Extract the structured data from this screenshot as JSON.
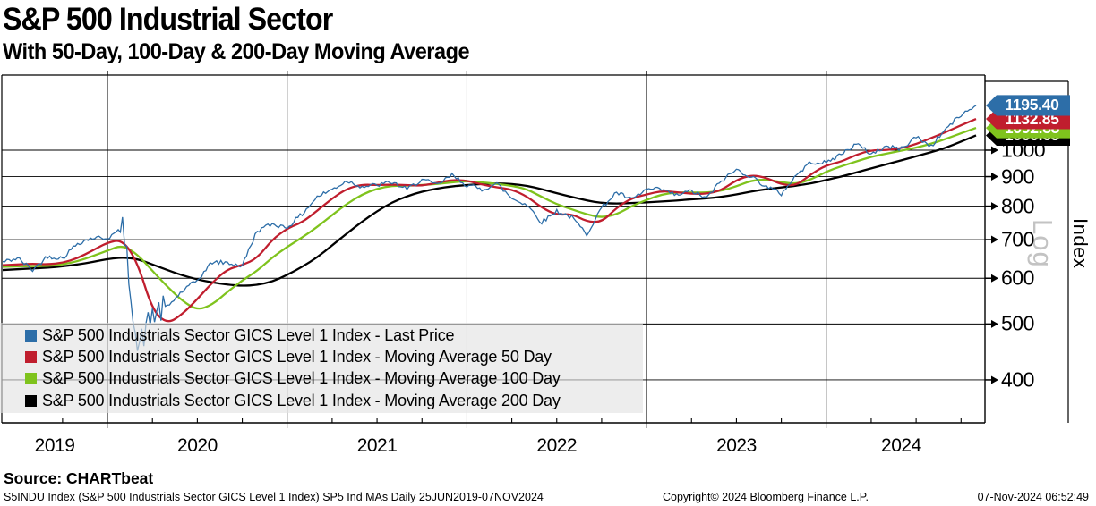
{
  "header": {
    "title": "S&P 500 Industrial Sector",
    "subtitle": "With 50-Day, 100-Day & 200-Day Moving Average"
  },
  "legend": {
    "items": [
      {
        "label": "S&P 500 Industrials Sector GICS Level 1 Index - Last Price",
        "color": "#2d6ea8"
      },
      {
        "label": "S&P 500 Industrials Sector GICS Level 1 Index - Moving Average 50 Day",
        "color": "#c01e2e"
      },
      {
        "label": "S&P 500 Industrials Sector GICS Level 1 Index - Moving Average 100 Day",
        "color": "#7fc31d"
      },
      {
        "label": "S&P 500 Industrials Sector GICS Level 1 Index - Moving Average 200 Day",
        "color": "#000000"
      }
    ]
  },
  "y_axis": {
    "scale_label": "Log",
    "axis_title": "Index",
    "ticks": [
      "1000",
      "900",
      "800",
      "700",
      "600",
      "500",
      "400"
    ]
  },
  "x_axis": {
    "year_labels": [
      "2019",
      "2020",
      "2021",
      "2022",
      "2023",
      "2024"
    ]
  },
  "price_labels": [
    {
      "value": "1195.40",
      "color": "#2d6ea8",
      "numeric": 1195.4
    },
    {
      "value": "1132.85",
      "color": "#c01e2e",
      "numeric": 1132.85
    },
    {
      "value": "1092.88",
      "color": "#7fc31d",
      "numeric": 1092.88
    },
    {
      "value": "1060.65",
      "color": "#000000",
      "numeric": 1060.65
    }
  ],
  "footer": {
    "source": "Source: CHARTbeat",
    "description": "S5INDU Index (S&P 500 Industrials Sector GICS Level 1 Index) SP5 Ind MAs  Daily 25JUN2019-07NOV2024",
    "copyright": "Copyright© 2024 Bloomberg Finance L.P.",
    "datetime": "07-Nov-2024 06:52:49"
  },
  "chart_data": {
    "type": "line",
    "title": "S&P 500 Industrial Sector",
    "subtitle": "With 50-Day, 100-Day & 200-Day Moving Average",
    "y_scale": "log",
    "ylabel": "Index",
    "y_ticks": [
      1000,
      900,
      800,
      700,
      600,
      500,
      400
    ],
    "ylim": [
      340,
      1340
    ],
    "x_range": [
      "25JUN2019",
      "07NOV2024"
    ],
    "grid": true,
    "legend_position": "lower-left",
    "x": [
      "2019-06",
      "2019-07",
      "2019-08",
      "2019-09",
      "2019-10",
      "2019-11",
      "2019-12",
      "2020-01",
      "2020-02",
      "2020-03",
      "2020-04",
      "2020-05",
      "2020-06",
      "2020-07",
      "2020-08",
      "2020-09",
      "2020-10",
      "2020-11",
      "2020-12",
      "2021-01",
      "2021-02",
      "2021-03",
      "2021-04",
      "2021-05",
      "2021-06",
      "2021-07",
      "2021-08",
      "2021-09",
      "2021-10",
      "2021-11",
      "2021-12",
      "2022-01",
      "2022-02",
      "2022-03",
      "2022-04",
      "2022-05",
      "2022-06",
      "2022-07",
      "2022-08",
      "2022-09",
      "2022-10",
      "2022-11",
      "2022-12",
      "2023-01",
      "2023-02",
      "2023-03",
      "2023-04",
      "2023-05",
      "2023-06",
      "2023-07",
      "2023-08",
      "2023-09",
      "2023-10",
      "2023-11",
      "2023-12",
      "2024-01",
      "2024-02",
      "2024-03",
      "2024-04",
      "2024-05",
      "2024-06",
      "2024-07",
      "2024-08",
      "2024-09",
      "2024-10",
      "2024-11"
    ],
    "series": [
      {
        "name": "Last Price",
        "color": "#2d6ea8",
        "last_value": 1195.4,
        "noisy": true,
        "values": [
          640,
          650,
          620,
          655,
          650,
          690,
          705,
          705,
          730,
          450,
          520,
          535,
          570,
          595,
          640,
          638,
          630,
          725,
          745,
          735,
          775,
          830,
          855,
          885,
          865,
          870,
          880,
          855,
          890,
          870,
          905,
          870,
          855,
          875,
          825,
          805,
          750,
          785,
          765,
          715,
          795,
          845,
          820,
          855,
          855,
          835,
          850,
          825,
          885,
          925,
          900,
          865,
          840,
          905,
          955,
          950,
          985,
          1025,
          985,
          1015,
          1005,
          1055,
          1015,
          1090,
          1150,
          1195.4
        ]
      },
      {
        "name": "Moving Average 50 Day",
        "color": "#c01e2e",
        "last_value": 1132.85,
        "noisy": false,
        "values": [
          632,
          634,
          636,
          634,
          638,
          650,
          670,
          692,
          700,
          640,
          528,
          500,
          520,
          552,
          590,
          622,
          632,
          650,
          700,
          732,
          750,
          785,
          825,
          858,
          872,
          870,
          872,
          870,
          868,
          878,
          888,
          886,
          872,
          862,
          855,
          832,
          795,
          772,
          776,
          752,
          750,
          795,
          826,
          838,
          850,
          846,
          840,
          840,
          852,
          888,
          906,
          896,
          872,
          868,
          910,
          942,
          955,
          982,
          1000,
          1000,
          1008,
          1024,
          1050,
          1075,
          1105,
          1132.85
        ]
      },
      {
        "name": "Moving Average 100 Day",
        "color": "#7fc31d",
        "last_value": 1092.88,
        "noisy": false,
        "values": [
          628,
          629,
          630,
          630,
          634,
          642,
          655,
          670,
          685,
          660,
          618,
          580,
          548,
          528,
          540,
          568,
          595,
          618,
          652,
          680,
          706,
          736,
          772,
          808,
          838,
          858,
          868,
          868,
          870,
          874,
          880,
          884,
          880,
          874,
          868,
          856,
          830,
          806,
          790,
          774,
          764,
          774,
          800,
          820,
          838,
          845,
          845,
          844,
          850,
          866,
          886,
          890,
          880,
          874,
          890,
          918,
          938,
          956,
          974,
          986,
          998,
          1010,
          1026,
          1046,
          1070,
          1092.88
        ]
      },
      {
        "name": "Moving Average 200 Day",
        "color": "#000000",
        "last_value": 1060.65,
        "noisy": false,
        "values": [
          620,
          622,
          624,
          626,
          629,
          634,
          640,
          648,
          652,
          648,
          634,
          620,
          607,
          597,
          590,
          585,
          582,
          584,
          592,
          608,
          628,
          652,
          684,
          718,
          752,
          784,
          812,
          832,
          848,
          858,
          866,
          870,
          874,
          876,
          874,
          868,
          856,
          842,
          830,
          818,
          810,
          808,
          810,
          812,
          815,
          818,
          822,
          825,
          830,
          838,
          848,
          856,
          862,
          868,
          876,
          888,
          900,
          915,
          930,
          945,
          960,
          976,
          992,
          1010,
          1035,
          1060.65
        ]
      }
    ]
  }
}
